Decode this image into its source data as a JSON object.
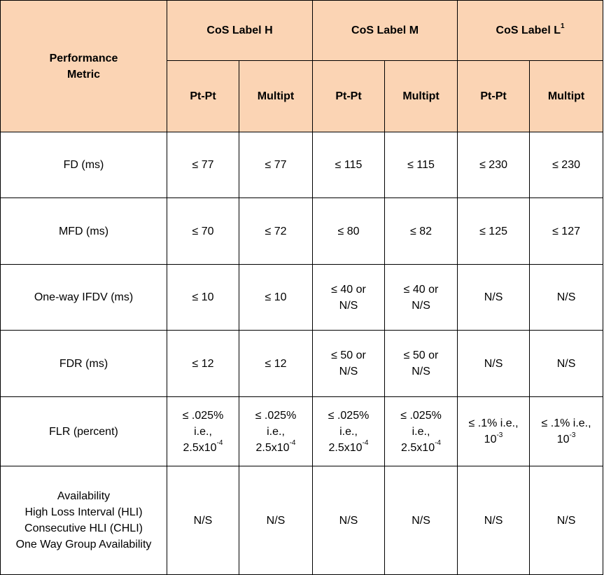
{
  "header": {
    "metric_line1": "Performance",
    "metric_line2": "Metric",
    "cos_h": "CoS Label H",
    "cos_m": "CoS Label M",
    "cos_l": "CoS Label L",
    "cos_l_sup": "1",
    "pt_pt": "Pt-Pt",
    "multipt": "Multipt"
  },
  "rows": {
    "fd": {
      "label": "FD (ms)",
      "h_pt": "≤ 77",
      "h_mp": "≤ 77",
      "m_pt": "≤ 115",
      "m_mp": "≤ 115",
      "l_pt": "≤ 230",
      "l_mp": "≤ 230"
    },
    "mfd": {
      "label": "MFD (ms)",
      "h_pt": "≤ 70",
      "h_mp": "≤ 72",
      "m_pt": "≤ 80",
      "m_mp": "≤ 82",
      "l_pt": "≤ 125",
      "l_mp": "≤ 127"
    },
    "ifdv": {
      "label": "One-way IFDV (ms)",
      "h_pt": "≤ 10",
      "h_mp": "≤ 10",
      "m_pt_1": "≤ 40 or",
      "m_pt_2": "N/S",
      "m_mp_1": "≤ 40 or",
      "m_mp_2": "N/S",
      "l_pt": "N/S",
      "l_mp": "N/S"
    },
    "fdr": {
      "label": "FDR (ms)",
      "h_pt": "≤ 12",
      "h_mp": "≤ 12",
      "m_pt_1": "≤ 50 or",
      "m_pt_2": "N/S",
      "m_mp_1": "≤ 50 or",
      "m_mp_2": "N/S",
      "l_pt": "N/S",
      "l_mp": "N/S"
    },
    "flr": {
      "label": "FLR (percent)",
      "hm_line1": "≤ .025%",
      "hm_line2": "i.e.,",
      "hm_base": "2.5x10",
      "hm_exp": "-4",
      "l_line1": "≤ .1% i.e.,",
      "l_base": "10",
      "l_exp": "-3"
    },
    "avail": {
      "label1": "Availability",
      "label2": "High Loss Interval (HLI)",
      "label3": "Consecutive HLI (CHLI)",
      "label4": "One Way Group Availability",
      "value": "N/S"
    }
  }
}
